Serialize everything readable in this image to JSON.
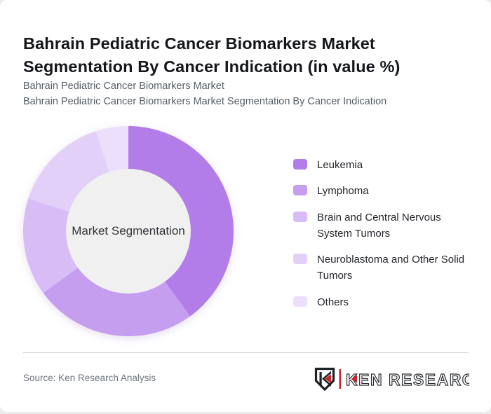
{
  "header": {
    "title": "Bahrain Pediatric Cancer Biomarkers Market Segmentation By Cancer Indication (in value %)",
    "subtitle_line1": "Bahrain Pediatric Cancer Biomarkers Market",
    "subtitle_line2": "Bahrain Pediatric Cancer Biomarkers Market Segmentation By Cancer Indication"
  },
  "chart_data": {
    "type": "pie",
    "variant": "donut",
    "title": "Bahrain Pediatric Cancer Biomarkers Market Segmentation By Cancer Indication (in value %)",
    "center_label": "Market Segmentation",
    "unit": "value %",
    "start_angle_deg": 0,
    "direction": "clockwise",
    "legend_position": "right",
    "hole_color": "#f0f0f0",
    "segments": [
      {
        "label": "Leukemia",
        "value": 40,
        "color": "#b27de8"
      },
      {
        "label": "Lymphoma",
        "value": 25,
        "color": "#c59ef0"
      },
      {
        "label": "Brain and Central Nervous System Tumors",
        "value": 15,
        "color": "#d8bcf5"
      },
      {
        "label": "Neuroblastoma and Other Solid Tumors",
        "value": 15,
        "color": "#e3d0f8"
      },
      {
        "label": "Others",
        "value": 5,
        "color": "#ecdffb"
      }
    ]
  },
  "footer": {
    "source": "Source: Ken Research Analysis",
    "logo": {
      "brand": "KEN RESEARCH",
      "accent_color": "#c9252b",
      "text_color": "#26292e"
    }
  }
}
